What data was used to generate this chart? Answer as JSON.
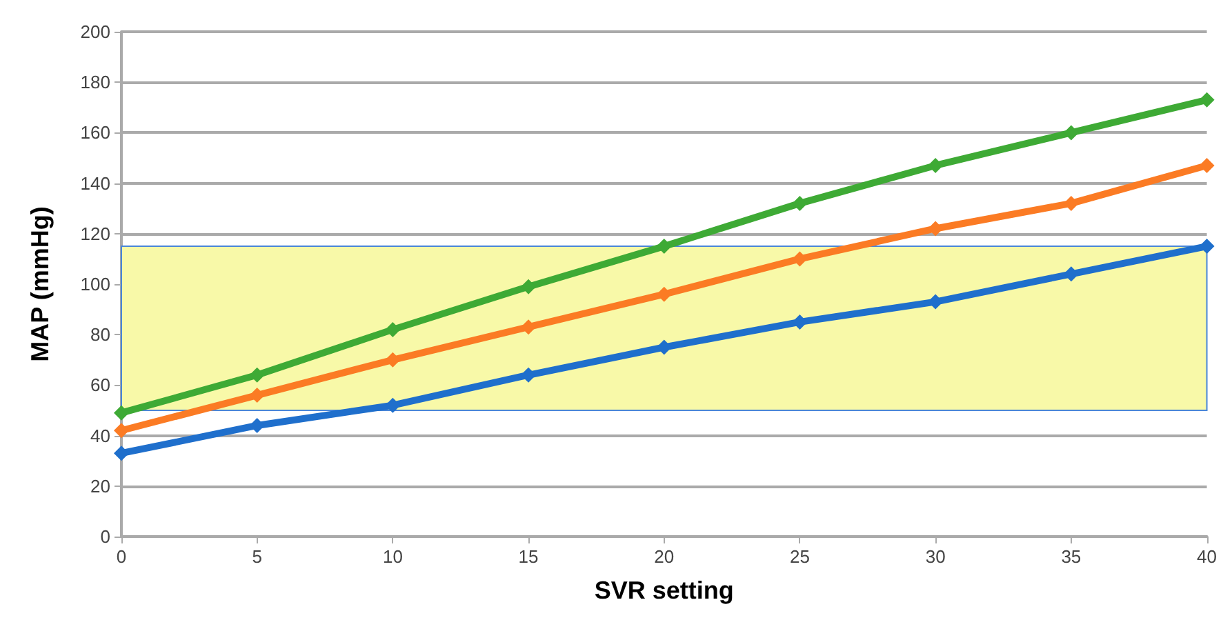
{
  "chart_data": {
    "type": "line",
    "xlabel": "SVR setting",
    "ylabel": "MAP (mmHg)",
    "x": [
      0,
      5,
      10,
      15,
      20,
      25,
      30,
      35,
      40
    ],
    "series": [
      {
        "color": "#3eaa35",
        "values": [
          49,
          64,
          82,
          99,
          115,
          132,
          147,
          160,
          173
        ]
      },
      {
        "color": "#fb7b24",
        "values": [
          42,
          56,
          70,
          83,
          96,
          110,
          122,
          132,
          147
        ]
      },
      {
        "color": "#1f6fcc",
        "values": [
          33,
          44,
          52,
          64,
          75,
          85,
          93,
          104,
          115
        ]
      }
    ],
    "xlim": [
      0,
      40
    ],
    "xticks": [
      0,
      5,
      10,
      15,
      20,
      25,
      30,
      35,
      40
    ],
    "ylim": [
      0,
      200
    ],
    "yticks": [
      0,
      20,
      40,
      60,
      80,
      100,
      120,
      140,
      160,
      180,
      200
    ],
    "bands": [
      {
        "axis": "y",
        "from": 50,
        "to": 115,
        "color": "#f8f9a8"
      }
    ],
    "grid": "y",
    "marker": "diamond",
    "line_style": "solid"
  }
}
